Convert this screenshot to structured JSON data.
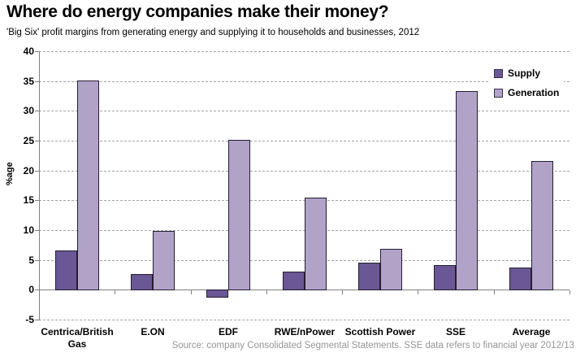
{
  "title": "Where do energy companies make their money?",
  "subtitle": "'Big Six' profit margins from generating energy and supplying it to households and businesses, 2012",
  "source_note": "Source: company Consolidated Segmental Statements. SSE data refers to financial year 2012/13",
  "chart_data": {
    "type": "bar",
    "title": "Where do energy companies make their money?",
    "subtitle": "'Big Six' profit margins from generating energy and supplying it to households and businesses, 2012",
    "categories": [
      "Centrica/British Gas",
      "E.ON",
      "EDF",
      "RWE/nPower",
      "Scottish Power",
      "SSE",
      "Average"
    ],
    "series": [
      {
        "name": "Supply",
        "color": "#6a5795",
        "values": [
          6.6,
          2.6,
          -1.3,
          3.0,
          4.6,
          4.2,
          3.7
        ]
      },
      {
        "name": "Generation",
        "color": "#b1a2c8",
        "values": [
          35.1,
          9.9,
          25.1,
          15.5,
          6.9,
          33.3,
          21.6
        ]
      }
    ],
    "xlabel": "",
    "ylabel": "%age",
    "ylim": [
      -5,
      40
    ],
    "yticks": [
      40,
      35,
      30,
      25,
      20,
      15,
      10,
      5,
      0,
      -5
    ],
    "grid": "horizontal-dashed",
    "legend_position": "top-right",
    "colors": {
      "supply": "#6a5795",
      "generation": "#b1a2c8",
      "bar_border": "#241d2f",
      "axis": "#808080",
      "gridline": "#a6a6a6",
      "source_text": "#969696"
    }
  }
}
